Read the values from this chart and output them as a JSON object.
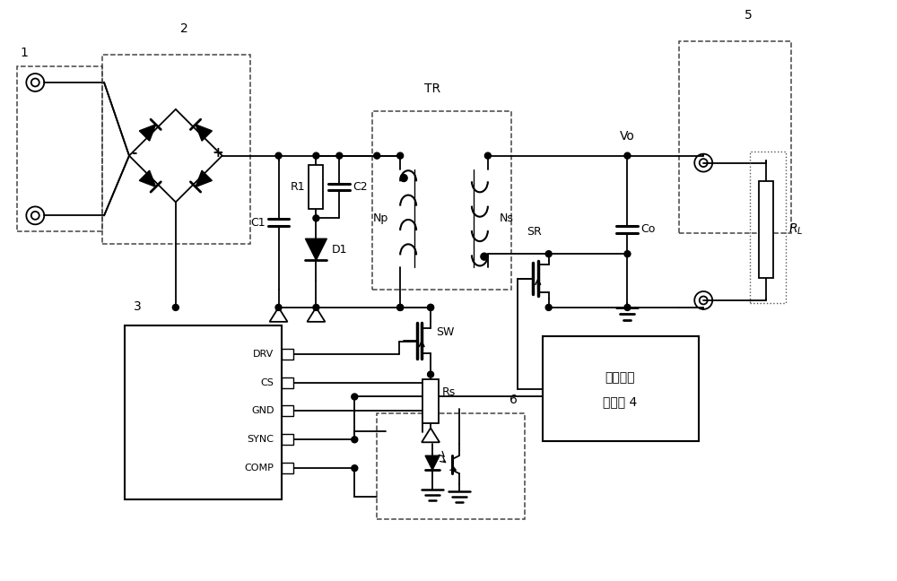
{
  "bg_color": "#ffffff",
  "line_color": "#000000",
  "fig_w": 10.0,
  "fig_h": 6.48,
  "dpi": 100,
  "xlim": [
    0,
    1000
  ],
  "ylim": [
    0,
    648
  ]
}
